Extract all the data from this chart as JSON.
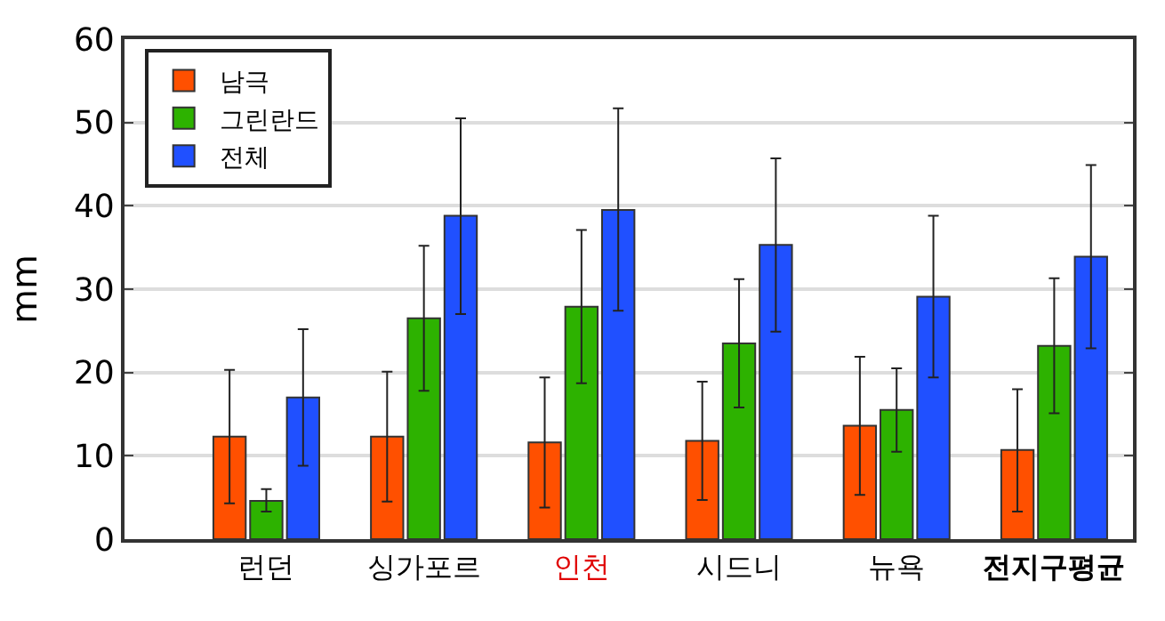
{
  "chart_data": {
    "type": "bar",
    "ylabel": "mm",
    "categories": [
      "런던",
      "싱가포르",
      "인천",
      "시드니",
      "뉴욕",
      "전지구평균"
    ],
    "series": [
      {
        "name": "남극",
        "color": "#ff5000",
        "values": [
          12.3,
          12.3,
          11.6,
          11.8,
          13.6,
          10.7
        ],
        "errors": [
          [
            4.3,
            20.3
          ],
          [
            4.5,
            20.1
          ],
          [
            3.8,
            19.4
          ],
          [
            4.7,
            18.9
          ],
          [
            5.3,
            21.9
          ],
          [
            3.3,
            18.0
          ]
        ]
      },
      {
        "name": "그린란드",
        "color": "#2db200",
        "values": [
          4.6,
          26.5,
          27.9,
          23.5,
          15.5,
          23.2
        ],
        "errors": [
          [
            3.3,
            6.0
          ],
          [
            17.8,
            35.2
          ],
          [
            18.7,
            37.1
          ],
          [
            15.8,
            31.2
          ],
          [
            10.5,
            20.5
          ],
          [
            15.1,
            31.3
          ]
        ]
      },
      {
        "name": "전체",
        "color": "#2050ff",
        "values": [
          17.0,
          38.8,
          39.5,
          35.3,
          29.1,
          33.9
        ],
        "errors": [
          [
            8.8,
            25.2
          ],
          [
            27.0,
            50.5
          ],
          [
            27.4,
            51.7
          ],
          [
            24.9,
            45.7
          ],
          [
            19.4,
            38.8
          ],
          [
            22.9,
            44.9
          ]
        ]
      }
    ],
    "ylim": [
      0,
      60
    ],
    "yticks": [
      0,
      10,
      20,
      30,
      40,
      50,
      60
    ],
    "grid": "y",
    "legend": "top left"
  }
}
